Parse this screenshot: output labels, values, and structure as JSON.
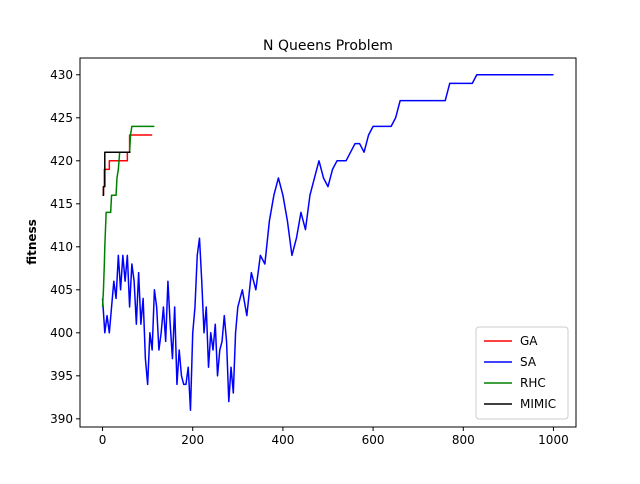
{
  "chart_data": {
    "type": "line",
    "title": "N Queens Problem",
    "y_label": "fitness",
    "xlim": [
      -50,
      1050
    ],
    "ylim": [
      389.05,
      431.95
    ],
    "xticks": [
      0,
      200,
      400,
      600,
      800,
      1000
    ],
    "yticks": [
      390,
      395,
      400,
      405,
      410,
      415,
      420,
      425,
      430
    ],
    "legend": "lower right",
    "grid": false,
    "series": [
      {
        "name": "GA",
        "color": "#ff0000",
        "x": [
          0,
          2,
          2,
          4,
          4,
          15,
          15,
          55,
          55,
          60,
          60,
          110
        ],
        "values": [
          416,
          416,
          417,
          417,
          419,
          419,
          420,
          420,
          421,
          421,
          423,
          423
        ]
      },
      {
        "name": "SA",
        "color": "#0000ff",
        "x": [
          0,
          5,
          10,
          15,
          20,
          25,
          30,
          35,
          40,
          45,
          50,
          55,
          60,
          65,
          70,
          75,
          80,
          85,
          90,
          95,
          100,
          105,
          110,
          115,
          120,
          125,
          130,
          135,
          140,
          145,
          150,
          155,
          160,
          165,
          170,
          175,
          180,
          185,
          190,
          195,
          200,
          205,
          210,
          215,
          220,
          225,
          230,
          235,
          240,
          245,
          250,
          255,
          260,
          265,
          270,
          275,
          280,
          285,
          290,
          295,
          300,
          310,
          320,
          330,
          340,
          350,
          360,
          370,
          380,
          390,
          400,
          410,
          420,
          430,
          440,
          450,
          460,
          470,
          480,
          490,
          500,
          510,
          520,
          530,
          540,
          550,
          560,
          570,
          580,
          590,
          600,
          620,
          640,
          650,
          660,
          700,
          760,
          770,
          820,
          830,
          1000
        ],
        "values": [
          404,
          400,
          402,
          400,
          403,
          406,
          404,
          409,
          405,
          409,
          406,
          409,
          403,
          408,
          406,
          401,
          407,
          401,
          404,
          397,
          394,
          400,
          398,
          405,
          403,
          398,
          400,
          403,
          399,
          406,
          401,
          397,
          403,
          394,
          398,
          395,
          394,
          394,
          396,
          391,
          400,
          403,
          409,
          411,
          406,
          400,
          403,
          396,
          400,
          398,
          401,
          395,
          398,
          399,
          402,
          399,
          392,
          396,
          393,
          400,
          403,
          405,
          402,
          407,
          405,
          409,
          408,
          413,
          416,
          418,
          416,
          413,
          409,
          411,
          414,
          412,
          416,
          418,
          420,
          418,
          417,
          419,
          420,
          420,
          420,
          421,
          422,
          422,
          421,
          423,
          424,
          424,
          424,
          425,
          427,
          427,
          427,
          429,
          429,
          430,
          430
        ]
      },
      {
        "name": "RHC",
        "color": "#008000",
        "x": [
          0,
          2,
          4,
          5,
          8,
          18,
          20,
          30,
          32,
          35,
          38,
          60,
          62,
          65,
          115
        ],
        "values": [
          403,
          405,
          408,
          410,
          414,
          414,
          416,
          416,
          418,
          419,
          421,
          421,
          423,
          424,
          424
        ]
      },
      {
        "name": "MIMIC",
        "color": "#000000",
        "x": [
          0,
          2,
          2,
          5,
          5,
          62
        ],
        "values": [
          416,
          416,
          417,
          417,
          421,
          421
        ]
      }
    ]
  }
}
